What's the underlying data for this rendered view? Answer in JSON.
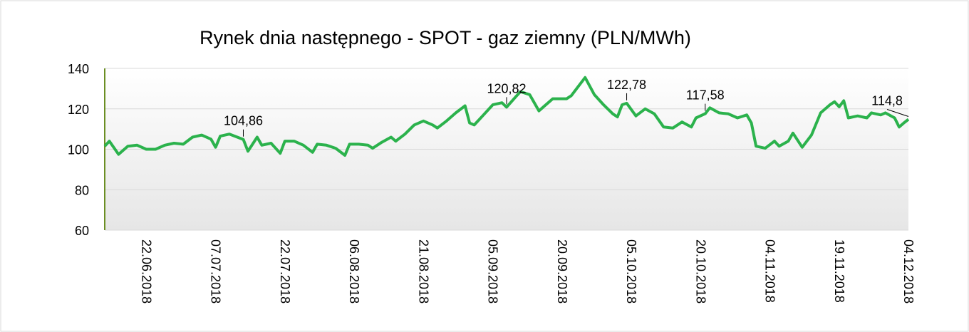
{
  "chart_data": {
    "type": "line",
    "title": "Rynek dnia następnego - SPOT - gaz ziemny (PLN/MWh)",
    "series": [
      {
        "name": "gaz ziemny",
        "color": "#2bb24c",
        "x": [
          "13.06.2018",
          "14.06.2018",
          "16.06.2018",
          "18.06.2018",
          "20.06.2018",
          "22.06.2018",
          "24.06.2018",
          "26.06.2018",
          "28.06.2018",
          "30.06.2018",
          "02.07.2018",
          "04.07.2018",
          "06.07.2018",
          "07.07.2018",
          "08.07.2018",
          "10.07.2018",
          "13.07.2018",
          "14.07.2018",
          "16.07.2018",
          "17.07.2018",
          "19.07.2018",
          "21.07.2018",
          "22.07.2018",
          "24.07.2018",
          "26.07.2018",
          "28.07.2018",
          "29.07.2018",
          "31.07.2018",
          "02.08.2018",
          "04.08.2018",
          "05.08.2018",
          "07.08.2018",
          "09.08.2018",
          "10.08.2018",
          "12.08.2018",
          "14.08.2018",
          "15.08.2018",
          "17.08.2018",
          "19.08.2018",
          "21.08.2018",
          "23.08.2018",
          "24.08.2018",
          "26.08.2018",
          "28.08.2018",
          "30.08.2018",
          "31.08.2018",
          "01.09.2018",
          "03.09.2018",
          "05.09.2018",
          "07.09.2018",
          "08.09.2018",
          "10.09.2018",
          "11.09.2018",
          "13.09.2018",
          "15.09.2018",
          "16.09.2018",
          "18.09.2018",
          "20.09.2018",
          "21.09.2018",
          "22.09.2018",
          "24.09.2018",
          "25.09.2018",
          "27.09.2018",
          "29.09.2018",
          "01.10.2018",
          "02.10.2018",
          "03.10.2018",
          "04.10.2018",
          "06.10.2018",
          "08.10.2018",
          "10.10.2018",
          "12.10.2018",
          "14.10.2018",
          "16.10.2018",
          "18.10.2018",
          "19.10.2018",
          "21.10.2018",
          "22.10.2018",
          "24.10.2018",
          "26.10.2018",
          "28.10.2018",
          "30.10.2018",
          "31.10.2018",
          "01.11.2018",
          "03.11.2018",
          "05.11.2018",
          "06.11.2018",
          "08.11.2018",
          "09.11.2018",
          "11.11.2018",
          "13.11.2018",
          "15.11.2018",
          "17.11.2018",
          "18.11.2018",
          "19.11.2018",
          "20.11.2018",
          "21.11.2018",
          "23.11.2018",
          "25.11.2018",
          "26.11.2018",
          "28.11.2018",
          "29.11.2018",
          "01.12.2018",
          "02.12.2018",
          "03.12.2018",
          "04.12.2018"
        ],
        "values": [
          101.5,
          104,
          97.5,
          101.5,
          102,
          100,
          100,
          102,
          103,
          102.5,
          106,
          107,
          105,
          101,
          106.5,
          107.5,
          104.86,
          99,
          106,
          102,
          103,
          98,
          104,
          104,
          102,
          98.5,
          102.5,
          102,
          100.5,
          97,
          102.5,
          102.5,
          102,
          100.5,
          103.5,
          106,
          104,
          107.5,
          112,
          114,
          112,
          110.5,
          114,
          118,
          121.5,
          113,
          112,
          117,
          122,
          123,
          120.82,
          126,
          128.5,
          127,
          119,
          121,
          125,
          125,
          125,
          126.5,
          132.5,
          135.5,
          127,
          122,
          117.5,
          116,
          122,
          122.78,
          116.5,
          120,
          117.5,
          111,
          110.5,
          113.5,
          111,
          115.5,
          117.58,
          120.5,
          118,
          117.5,
          115.5,
          117,
          113,
          101.5,
          100.5,
          104,
          101.5,
          104,
          108,
          101,
          107,
          118,
          122,
          123.5,
          121,
          124,
          115.5,
          116.5,
          115.5,
          118,
          117,
          118,
          115.5,
          111,
          113,
          114.8
        ]
      }
    ],
    "annotations": [
      {
        "x": "13.07.2018",
        "y": 104.86,
        "label": "104,86"
      },
      {
        "x": "08.09.2018",
        "y": 120.82,
        "label": "120,82"
      },
      {
        "x": "04.10.2018",
        "y": 122.78,
        "label": "122,78"
      },
      {
        "x": "21.10.2018",
        "y": 117.58,
        "label": "117,58"
      },
      {
        "x": "04.12.2018",
        "y": 114.8,
        "label": "114,8"
      }
    ],
    "xlim": [
      "13.06.2018",
      "04.12.2018"
    ],
    "xticks": [
      "22.06.2018",
      "07.07.2018",
      "22.07.2018",
      "06.08.2018",
      "21.08.2018",
      "05.09.2018",
      "20.09.2018",
      "05.10.2018",
      "20.10.2018",
      "04.11.2018",
      "19.11.2018",
      "04.12.2018"
    ],
    "ylim": [
      60,
      140
    ],
    "yticks": [
      60,
      80,
      100,
      120,
      140
    ],
    "grid": true
  }
}
